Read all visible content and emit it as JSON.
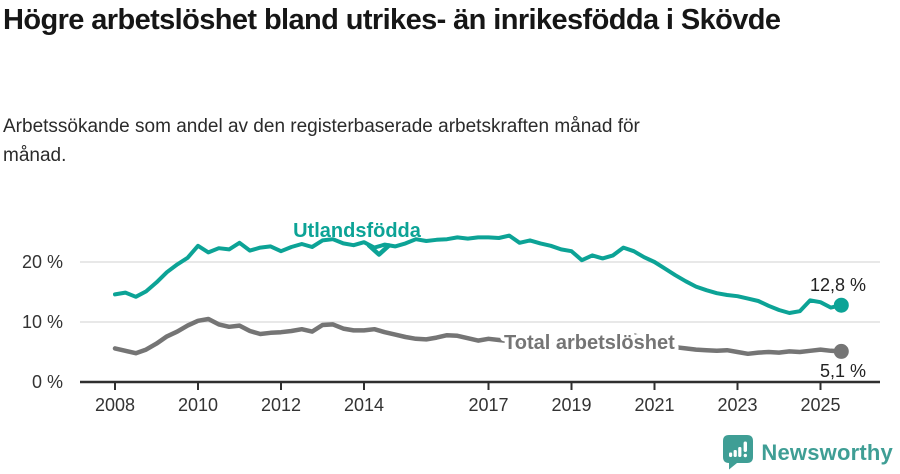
{
  "title": "Högre arbetslöshet bland utrikes- än inrikesfödda i Skövde",
  "subtitle": "Arbetssökande som andel av den registerbaserade arbetskraften månad för månad.",
  "colors": {
    "accent_teal": "#0ca396",
    "series_gray": "#757575",
    "axis": "#2f2f2f",
    "grid": "#d9d9d9",
    "annotation_text": "#222222",
    "logo_teal": "#3f9e95"
  },
  "footer": {
    "brand": "Newsworthy"
  },
  "chart_data": {
    "type": "line",
    "title": "Högre arbetslöshet bland utrikes- än inrikesfödda i Skövde",
    "subtitle": "Arbetssökande som andel av den registerbaserade arbetskraften månad för månad.",
    "grid": "horizontal-only",
    "legend_position": "inline-labels",
    "y_axis": {
      "range": [
        0,
        27
      ],
      "ticks": [
        {
          "value": 0,
          "label": "0 %"
        },
        {
          "value": 10,
          "label": "10 %"
        },
        {
          "value": 20,
          "label": "20 %"
        }
      ]
    },
    "x_axis": {
      "range": [
        2007.2,
        2026.3
      ],
      "ticks": [
        {
          "value": 2008,
          "label": "2008"
        },
        {
          "value": 2010,
          "label": "2010"
        },
        {
          "value": 2012,
          "label": "2012"
        },
        {
          "value": 2014,
          "label": "2014"
        },
        {
          "value": 2017,
          "label": "2017"
        },
        {
          "value": 2019,
          "label": "2019"
        },
        {
          "value": 2021,
          "label": "2021"
        },
        {
          "value": 2023,
          "label": "2023"
        },
        {
          "value": 2025,
          "label": "2025"
        }
      ]
    },
    "x": [
      2008,
      2008.25,
      2008.5,
      2008.75,
      2009,
      2009.25,
      2009.5,
      2009.75,
      2010,
      2010.25,
      2010.5,
      2010.75,
      2011,
      2011.25,
      2011.5,
      2011.75,
      2012,
      2012.25,
      2012.5,
      2012.75,
      2013,
      2013.25,
      2013.5,
      2013.75,
      2014,
      2014.25,
      2014.5,
      2014.75,
      2015,
      2015.25,
      2015.5,
      2015.75,
      2016,
      2016.25,
      2016.5,
      2016.75,
      2017,
      2017.25,
      2017.5,
      2017.75,
      2018,
      2018.25,
      2018.5,
      2018.75,
      2019,
      2019.25,
      2019.5,
      2019.75,
      2020,
      2020.25,
      2020.5,
      2020.75,
      2021,
      2021.25,
      2021.5,
      2021.75,
      2022,
      2022.25,
      2022.5,
      2022.75,
      2023,
      2023.25,
      2023.5,
      2023.75,
      2024,
      2024.25,
      2024.5,
      2024.75,
      2025,
      2025.25,
      2025.5
    ],
    "series": [
      {
        "name": "Utlandsfödda",
        "color": "#0ca396",
        "width": 4,
        "end_label": "12,8 %",
        "end_value": 12.8,
        "label_pointer": "chevron-down",
        "values": [
          14.6,
          14.9,
          14.2,
          15.1,
          16.6,
          18.3,
          19.6,
          20.7,
          22.7,
          21.6,
          22.3,
          22.1,
          23.2,
          21.9,
          22.4,
          22.6,
          21.8,
          22.5,
          23.0,
          22.5,
          23.6,
          23.8,
          23.1,
          22.8,
          23.3,
          22.4,
          22.9,
          22.6,
          23.1,
          23.8,
          23.5,
          23.7,
          23.8,
          24.1,
          23.9,
          24.1,
          24.1,
          24.0,
          24.4,
          23.2,
          23.6,
          23.1,
          22.7,
          22.1,
          21.8,
          20.3,
          21.1,
          20.6,
          21.1,
          22.4,
          21.8,
          20.8,
          20.0,
          18.9,
          17.8,
          16.8,
          15.9,
          15.3,
          14.8,
          14.5,
          14.3,
          13.9,
          13.5,
          12.7,
          12.0,
          11.5,
          11.8,
          13.6,
          13.3,
          12.4,
          12.8
        ]
      },
      {
        "name": "Total arbetslöshet",
        "color": "#757575",
        "width": 4.5,
        "end_label": "5,1 %",
        "end_value": 5.1,
        "label_pointer": "none",
        "values": [
          5.6,
          5.2,
          4.8,
          5.4,
          6.4,
          7.6,
          8.4,
          9.4,
          10.2,
          10.5,
          9.6,
          9.2,
          9.4,
          8.5,
          8.0,
          8.2,
          8.3,
          8.5,
          8.8,
          8.4,
          9.5,
          9.6,
          8.9,
          8.6,
          8.6,
          8.8,
          8.3,
          7.9,
          7.5,
          7.2,
          7.1,
          7.4,
          7.8,
          7.7,
          7.3,
          6.9,
          7.2,
          7.0,
          6.8,
          6.6,
          6.5,
          6.3,
          6.2,
          6.1,
          6.0,
          5.9,
          5.9,
          6.1,
          6.3,
          7.6,
          7.8,
          7.2,
          6.7,
          6.2,
          5.8,
          5.6,
          5.4,
          5.3,
          5.2,
          5.3,
          5.0,
          4.7,
          4.9,
          5.0,
          4.9,
          5.1,
          5.0,
          5.2,
          5.4,
          5.2,
          5.1
        ]
      }
    ]
  }
}
